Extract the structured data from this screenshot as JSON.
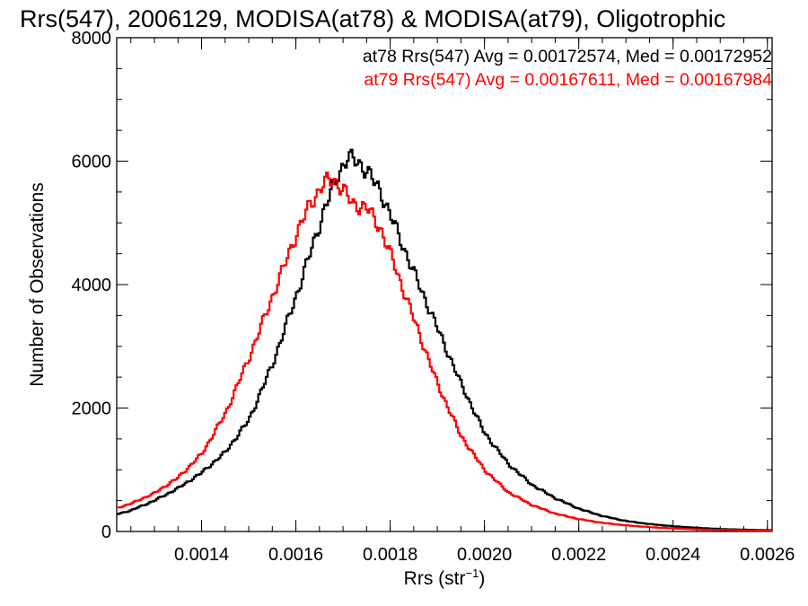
{
  "chart_data": {
    "type": "line",
    "title": "Rrs(547), 2006129, MODISA(at78) & MODISA(at79), Oligotrophic",
    "xlabel": "Rrs (str",
    "xlabel_sup": "−1",
    "xlabel_close": ")",
    "ylabel": "Number of Observations",
    "xlim": [
      0.00122,
      0.00261
    ],
    "ylim": [
      0,
      8000
    ],
    "xticks": [
      "0.0014",
      "0.0016",
      "0.0018",
      "0.0020",
      "0.0022",
      "0.0024",
      "0.0026"
    ],
    "xtick_values": [
      0.0014,
      0.0016,
      0.0018,
      0.002,
      0.0022,
      0.0024,
      0.0026
    ],
    "yticks": [
      "0",
      "2000",
      "4000",
      "6000",
      "8000"
    ],
    "ytick_values": [
      0,
      2000,
      4000,
      6000,
      8000
    ],
    "grid": false,
    "legend_placement": "top-right",
    "series": [
      {
        "name": "at78",
        "color": "#000000",
        "legend": "at78 Rrs(547) Avg = 0.00172574, Med = 0.00172952",
        "x": [
          0.00122,
          0.00125,
          0.0013,
          0.00135,
          0.0014,
          0.00145,
          0.0015,
          0.00155,
          0.0016,
          0.00163,
          0.00166,
          0.00169,
          0.00171,
          0.00173,
          0.00175,
          0.00178,
          0.00181,
          0.00185,
          0.0019,
          0.00195,
          0.002,
          0.00205,
          0.0021,
          0.00215,
          0.0022,
          0.00225,
          0.0023,
          0.00235,
          0.0024,
          0.00245,
          0.0025,
          0.00255,
          0.00261
        ],
        "y": [
          280,
          340,
          500,
          700,
          950,
          1280,
          1800,
          2700,
          3800,
          4500,
          5200,
          5800,
          6050,
          6000,
          5850,
          5500,
          4950,
          4200,
          3300,
          2400,
          1600,
          1100,
          760,
          540,
          370,
          250,
          170,
          120,
          85,
          60,
          40,
          30,
          20
        ]
      },
      {
        "name": "at79",
        "color": "#ff0000",
        "legend": "at79 Rrs(547) Avg = 0.00167611, Med = 0.00167984",
        "x": [
          0.00122,
          0.00125,
          0.0013,
          0.00135,
          0.0014,
          0.00145,
          0.0015,
          0.00155,
          0.0016,
          0.00163,
          0.00166,
          0.00168,
          0.0017,
          0.00172,
          0.00175,
          0.00178,
          0.00181,
          0.00185,
          0.0019,
          0.00195,
          0.002,
          0.00205,
          0.0021,
          0.00215,
          0.0022,
          0.00225,
          0.0023,
          0.00235,
          0.0024,
          0.00245,
          0.0025,
          0.00255,
          0.00261
        ],
        "y": [
          380,
          450,
          620,
          870,
          1250,
          1900,
          2800,
          3800,
          4800,
          5300,
          5650,
          5700,
          5550,
          5300,
          5250,
          4900,
          4300,
          3450,
          2400,
          1550,
          1000,
          640,
          430,
          290,
          200,
          140,
          100,
          70,
          50,
          35,
          25,
          18,
          12
        ]
      }
    ]
  }
}
